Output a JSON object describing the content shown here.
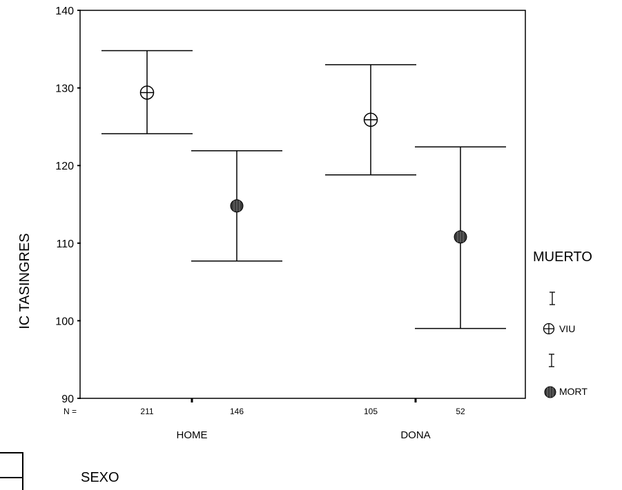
{
  "chart_data": {
    "type": "errorbar",
    "ylabel": "IC TASINGRES",
    "xlabel": "SEXO",
    "ylim": [
      90,
      140
    ],
    "yticks": [
      90,
      100,
      110,
      120,
      130,
      140
    ],
    "n_label": "N =",
    "categories": [
      "HOME",
      "DONA"
    ],
    "legend": {
      "title": "MUERTO",
      "entries": [
        "VIU",
        "MORT"
      ],
      "placement": "right"
    },
    "series": [
      {
        "name": "VIU",
        "marker": "circle-cross",
        "color": "#000000",
        "points": [
          {
            "group": "HOME",
            "mean": 129.4,
            "lower": 124.1,
            "upper": 134.8,
            "n": "211"
          },
          {
            "group": "DONA",
            "mean": 125.9,
            "lower": 118.8,
            "upper": 133.0,
            "n": "105"
          }
        ]
      },
      {
        "name": "MORT",
        "marker": "filled-circle",
        "color": "#3a3a3a",
        "points": [
          {
            "group": "HOME",
            "mean": 114.8,
            "lower": 107.7,
            "upper": 121.9,
            "n": "146"
          },
          {
            "group": "DONA",
            "mean": 110.8,
            "lower": 99.0,
            "upper": 122.4,
            "n": "52"
          }
        ]
      }
    ]
  }
}
